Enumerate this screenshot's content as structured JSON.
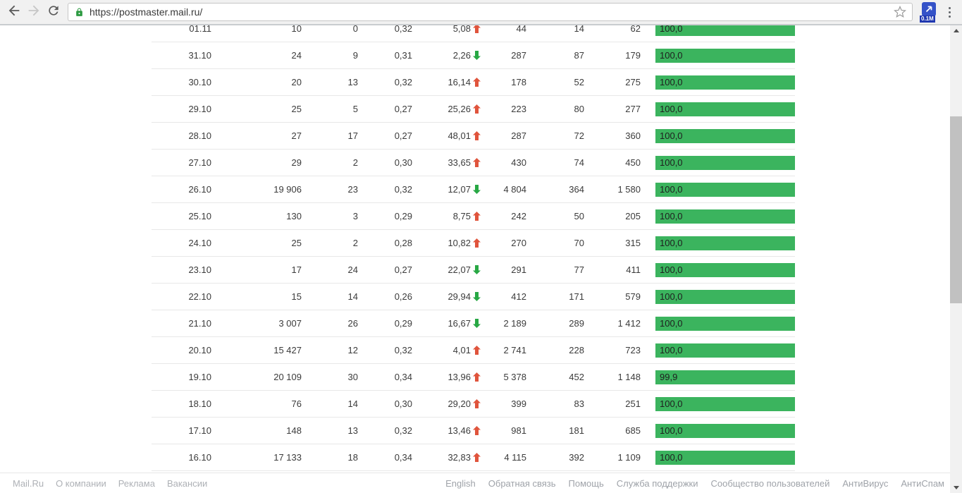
{
  "browser": {
    "url": "https://postmaster.mail.ru/",
    "extension_badge": "0.1M"
  },
  "colors": {
    "bar_green": "#3bb45e",
    "trend_up_red": "#e0543c",
    "trend_down_green": "#28a844",
    "lock_green": "#2c9a41"
  },
  "table": {
    "rows": [
      {
        "date": "01.11",
        "v1": "10",
        "v2": "0",
        "v3": "0,32",
        "delta": "5,08",
        "trend": "up",
        "v4": "44",
        "v5": "14",
        "v6": "62",
        "bar_label": "100,0",
        "bar_pct": 100
      },
      {
        "date": "31.10",
        "v1": "24",
        "v2": "9",
        "v3": "0,31",
        "delta": "2,26",
        "trend": "down",
        "v4": "287",
        "v5": "87",
        "v6": "179",
        "bar_label": "100,0",
        "bar_pct": 100
      },
      {
        "date": "30.10",
        "v1": "20",
        "v2": "13",
        "v3": "0,32",
        "delta": "16,14",
        "trend": "up",
        "v4": "178",
        "v5": "52",
        "v6": "275",
        "bar_label": "100,0",
        "bar_pct": 100
      },
      {
        "date": "29.10",
        "v1": "25",
        "v2": "5",
        "v3": "0,27",
        "delta": "25,26",
        "trend": "up",
        "v4": "223",
        "v5": "80",
        "v6": "277",
        "bar_label": "100,0",
        "bar_pct": 100
      },
      {
        "date": "28.10",
        "v1": "27",
        "v2": "17",
        "v3": "0,27",
        "delta": "48,01",
        "trend": "up",
        "v4": "287",
        "v5": "72",
        "v6": "360",
        "bar_label": "100,0",
        "bar_pct": 100
      },
      {
        "date": "27.10",
        "v1": "29",
        "v2": "2",
        "v3": "0,30",
        "delta": "33,65",
        "trend": "up",
        "v4": "430",
        "v5": "74",
        "v6": "450",
        "bar_label": "100,0",
        "bar_pct": 100
      },
      {
        "date": "26.10",
        "v1": "19 906",
        "v2": "23",
        "v3": "0,32",
        "delta": "12,07",
        "trend": "down",
        "v4": "4 804",
        "v5": "364",
        "v6": "1 580",
        "bar_label": "100,0",
        "bar_pct": 100
      },
      {
        "date": "25.10",
        "v1": "130",
        "v2": "3",
        "v3": "0,29",
        "delta": "8,75",
        "trend": "up",
        "v4": "242",
        "v5": "50",
        "v6": "205",
        "bar_label": "100,0",
        "bar_pct": 100
      },
      {
        "date": "24.10",
        "v1": "25",
        "v2": "2",
        "v3": "0,28",
        "delta": "10,82",
        "trend": "up",
        "v4": "270",
        "v5": "70",
        "v6": "315",
        "bar_label": "100,0",
        "bar_pct": 100
      },
      {
        "date": "23.10",
        "v1": "17",
        "v2": "24",
        "v3": "0,27",
        "delta": "22,07",
        "trend": "down",
        "v4": "291",
        "v5": "77",
        "v6": "411",
        "bar_label": "100,0",
        "bar_pct": 100
      },
      {
        "date": "22.10",
        "v1": "15",
        "v2": "14",
        "v3": "0,26",
        "delta": "29,94",
        "trend": "down",
        "v4": "412",
        "v5": "171",
        "v6": "579",
        "bar_label": "100,0",
        "bar_pct": 100
      },
      {
        "date": "21.10",
        "v1": "3 007",
        "v2": "26",
        "v3": "0,29",
        "delta": "16,67",
        "trend": "down",
        "v4": "2 189",
        "v5": "289",
        "v6": "1 412",
        "bar_label": "100,0",
        "bar_pct": 100
      },
      {
        "date": "20.10",
        "v1": "15 427",
        "v2": "12",
        "v3": "0,32",
        "delta": "4,01",
        "trend": "up",
        "v4": "2 741",
        "v5": "228",
        "v6": "723",
        "bar_label": "100,0",
        "bar_pct": 100
      },
      {
        "date": "19.10",
        "v1": "20 109",
        "v2": "30",
        "v3": "0,34",
        "delta": "13,96",
        "trend": "up",
        "v4": "5 378",
        "v5": "452",
        "v6": "1 148",
        "bar_label": "99,9",
        "bar_pct": 99.9
      },
      {
        "date": "18.10",
        "v1": "76",
        "v2": "14",
        "v3": "0,30",
        "delta": "29,20",
        "trend": "up",
        "v4": "399",
        "v5": "83",
        "v6": "251",
        "bar_label": "100,0",
        "bar_pct": 100
      },
      {
        "date": "17.10",
        "v1": "148",
        "v2": "13",
        "v3": "0,32",
        "delta": "13,46",
        "trend": "up",
        "v4": "981",
        "v5": "181",
        "v6": "685",
        "bar_label": "100,0",
        "bar_pct": 100
      },
      {
        "date": "16.10",
        "v1": "17 133",
        "v2": "18",
        "v3": "0,34",
        "delta": "32,83",
        "trend": "up",
        "v4": "4 115",
        "v5": "392",
        "v6": "1 109",
        "bar_label": "100,0",
        "bar_pct": 100
      }
    ]
  },
  "footer": {
    "left_links": [
      "Mail.Ru",
      "О компании",
      "Реклама",
      "Вакансии"
    ],
    "right_links": [
      "English",
      "Обратная связь",
      "Помощь",
      "Служба поддержки",
      "Сообщество пользователей",
      "АнтиВирус",
      "АнтиСпам"
    ]
  }
}
